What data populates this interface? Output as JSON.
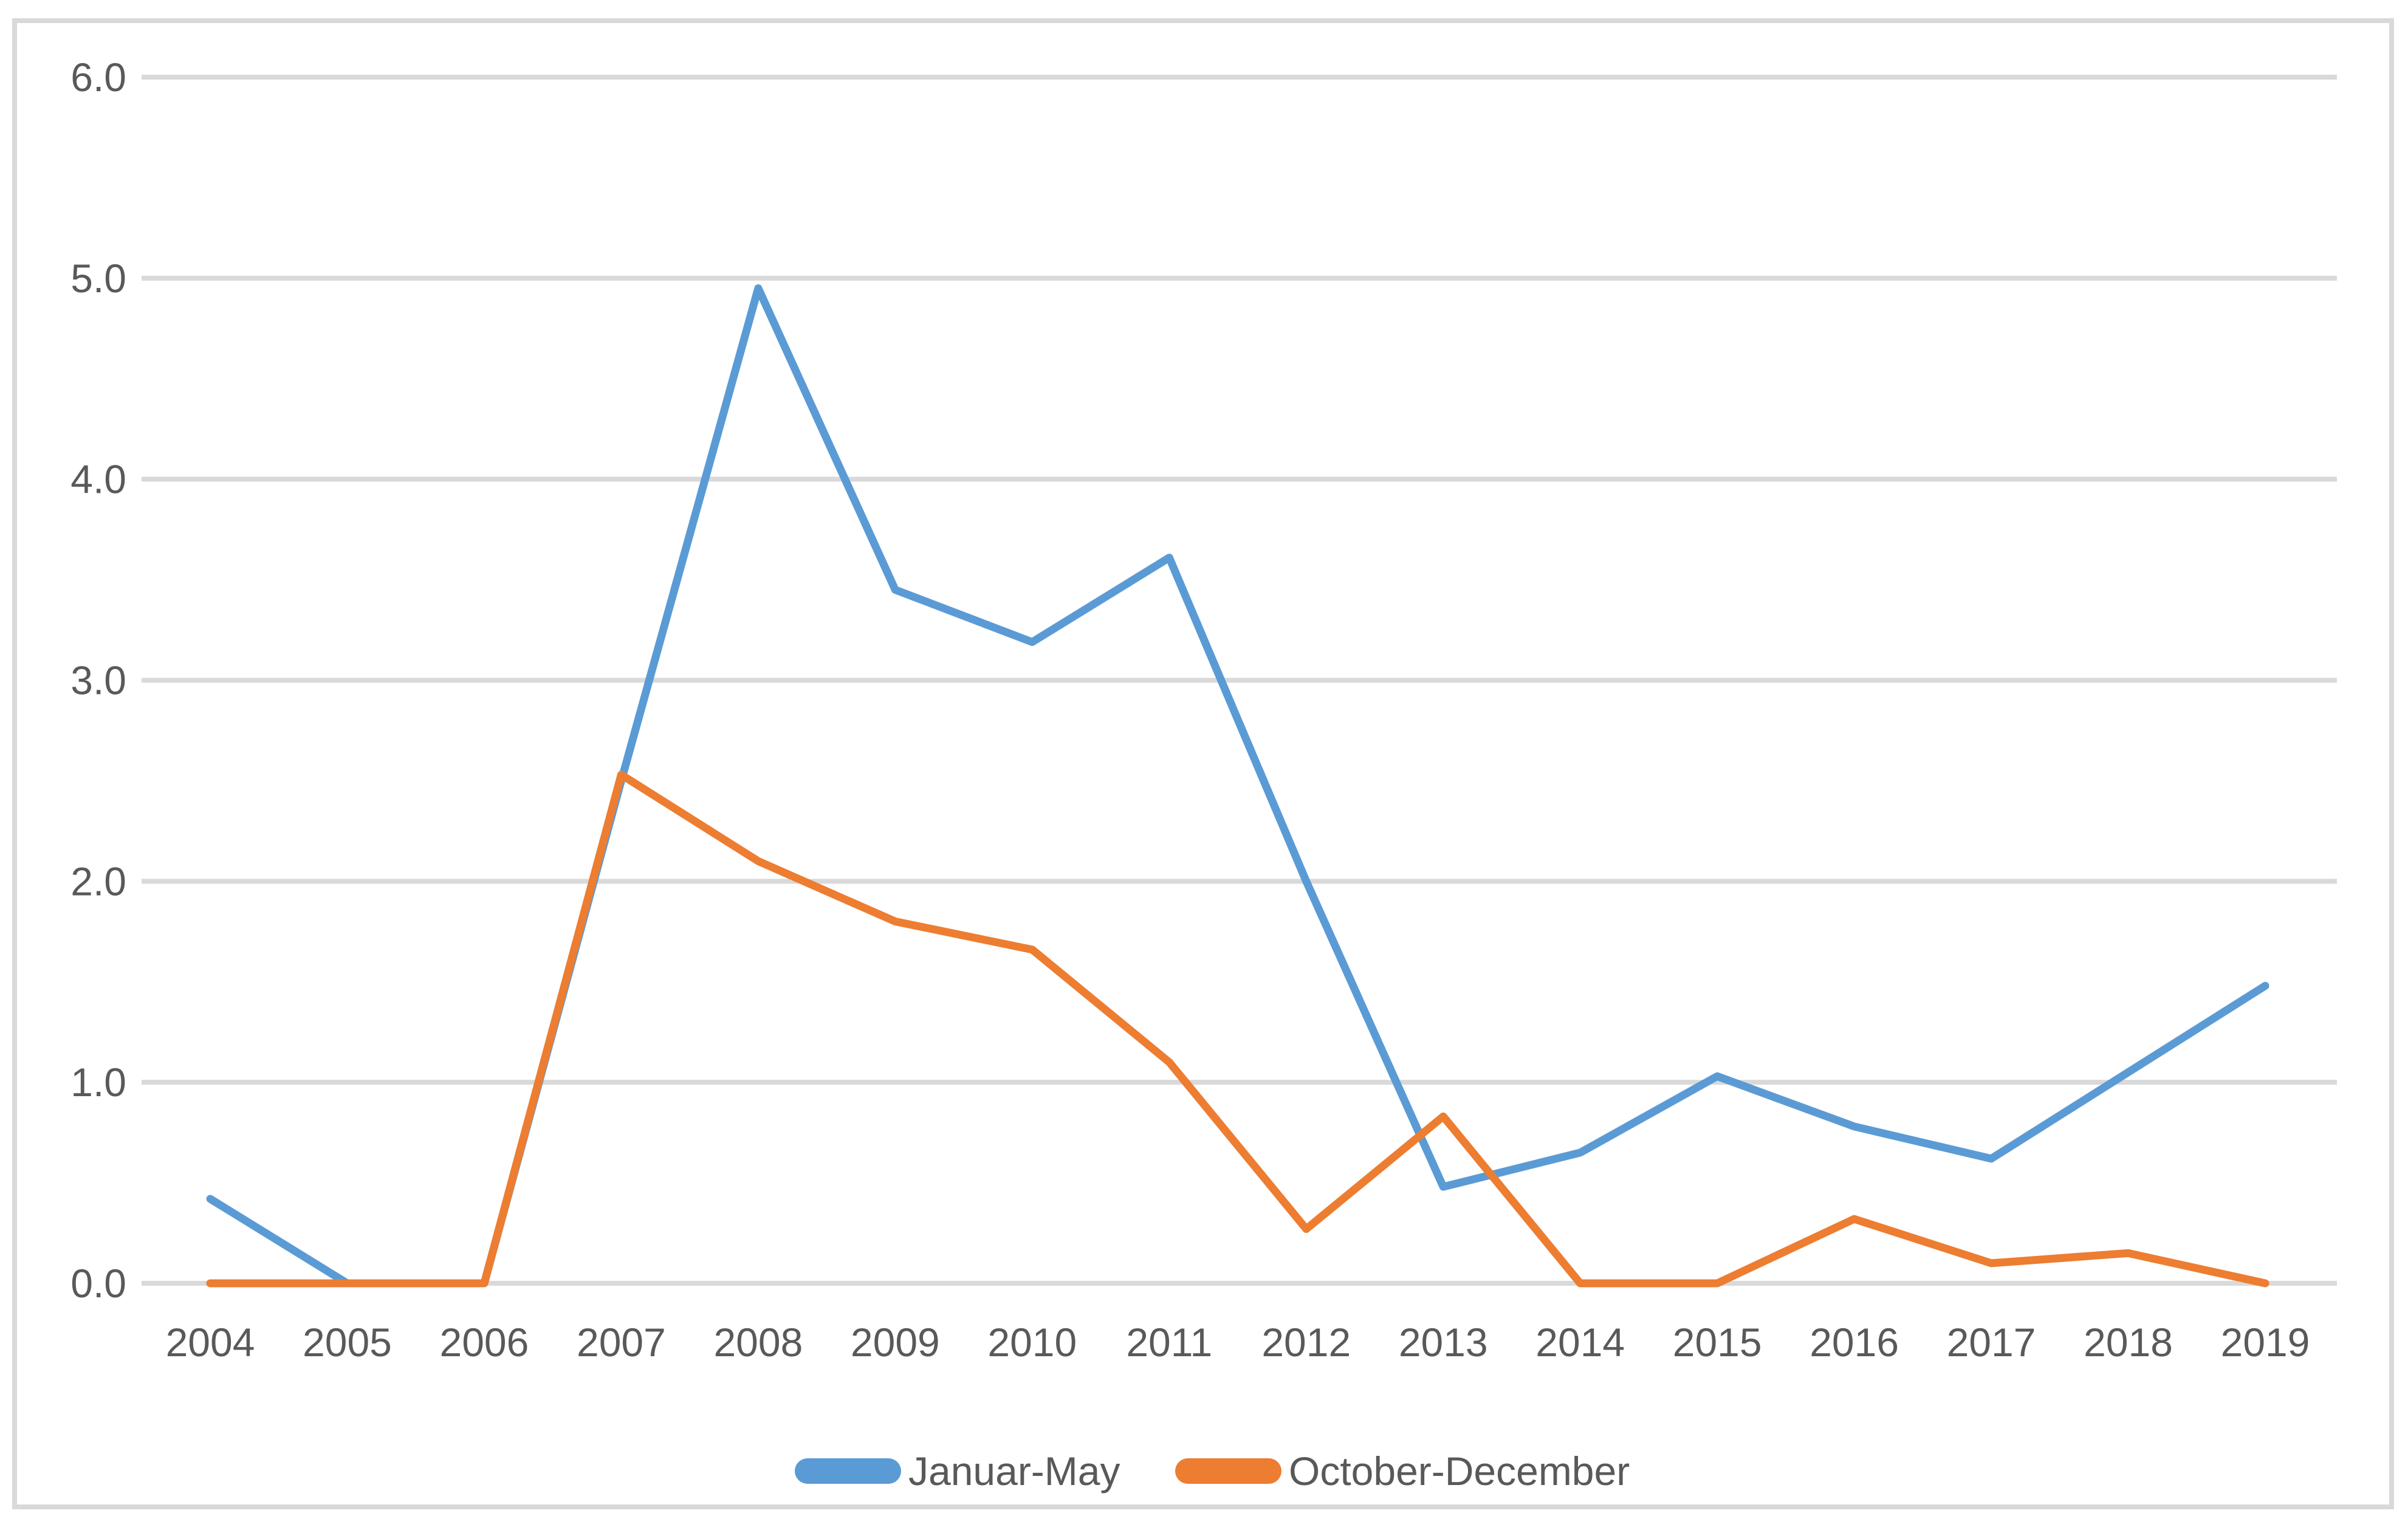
{
  "chart": {
    "background": "#FFFFFF",
    "border_color": "#D9D9D9",
    "gridline_color": "#D9D9D9",
    "axis_text_color": "#595959"
  },
  "chart_data": {
    "type": "line",
    "title": "",
    "categories": [
      "2004",
      "2005",
      "2006",
      "2007",
      "2008",
      "2009",
      "2010",
      "2011",
      "2012",
      "2013",
      "2014",
      "2015",
      "2016",
      "2017",
      "2018",
      "2019"
    ],
    "series": [
      {
        "name": "Januar-May",
        "color": "#5B9BD5",
        "values": [
          0.42,
          0.0,
          0.0,
          2.5,
          4.95,
          3.45,
          3.19,
          3.61,
          2.0,
          0.48,
          0.65,
          1.03,
          0.78,
          0.62,
          1.05,
          1.48
        ]
      },
      {
        "name": "October-December",
        "color": "#ED7D31",
        "values": [
          0.0,
          0.0,
          0.0,
          2.53,
          2.1,
          1.8,
          1.66,
          1.1,
          0.27,
          0.83,
          0.0,
          0.0,
          0.32,
          0.1,
          0.15,
          0.0
        ]
      }
    ],
    "ylim": [
      0.0,
      6.0
    ],
    "ytick_step": 1.0,
    "ytick_labels": [
      "0.0",
      "1.0",
      "2.0",
      "3.0",
      "4.0",
      "5.0",
      "6.0"
    ],
    "grid": true,
    "legend_position": "bottom",
    "xlabel": "",
    "ylabel": ""
  }
}
